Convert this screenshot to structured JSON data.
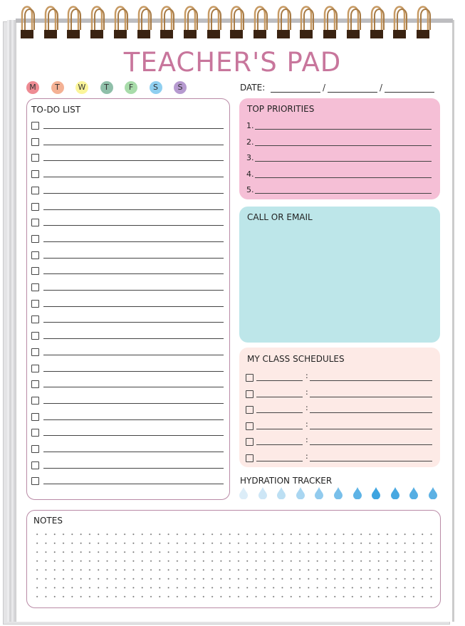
{
  "title": "TEACHER'S PAD",
  "days": [
    {
      "label": "M",
      "color": "#ee8b93"
    },
    {
      "label": "T",
      "color": "#f4b194"
    },
    {
      "label": "W",
      "color": "#fbf59a"
    },
    {
      "label": "T",
      "color": "#8fbfa9"
    },
    {
      "label": "F",
      "color": "#a8dcaa"
    },
    {
      "label": "S",
      "color": "#8fcff0"
    },
    {
      "label": "S",
      "color": "#b69ad0"
    }
  ],
  "date": {
    "label": "DATE:",
    "separator": "/"
  },
  "todo": {
    "title": "TO-DO LIST",
    "rows": 23,
    "border": "#b98aa6"
  },
  "priorities": {
    "title": "TOP PRIORITIES",
    "items": [
      "1.",
      "2.",
      "3.",
      "4.",
      "5."
    ],
    "color": "#f5bfd6"
  },
  "call": {
    "title": "CALL OR EMAIL",
    "color": "#bde6e9"
  },
  "schedules": {
    "title": "MY CLASS SCHEDULES",
    "rows": 6,
    "separator": ":",
    "color": "#fdeae6"
  },
  "hydration": {
    "title": "HYDRATION TRACKER",
    "drops": 11,
    "colors": [
      "#dcedf8",
      "#cde6f6",
      "#bcdff3",
      "#a9d6f1",
      "#92cbee",
      "#78bfea",
      "#5db3e6",
      "#3ea4e0",
      "#48a8e1",
      "#55aee3",
      "#5cb1e4"
    ]
  },
  "notes": {
    "title": "NOTES"
  },
  "colors": {
    "title": "#c8769c",
    "ring": "#c79a63"
  }
}
